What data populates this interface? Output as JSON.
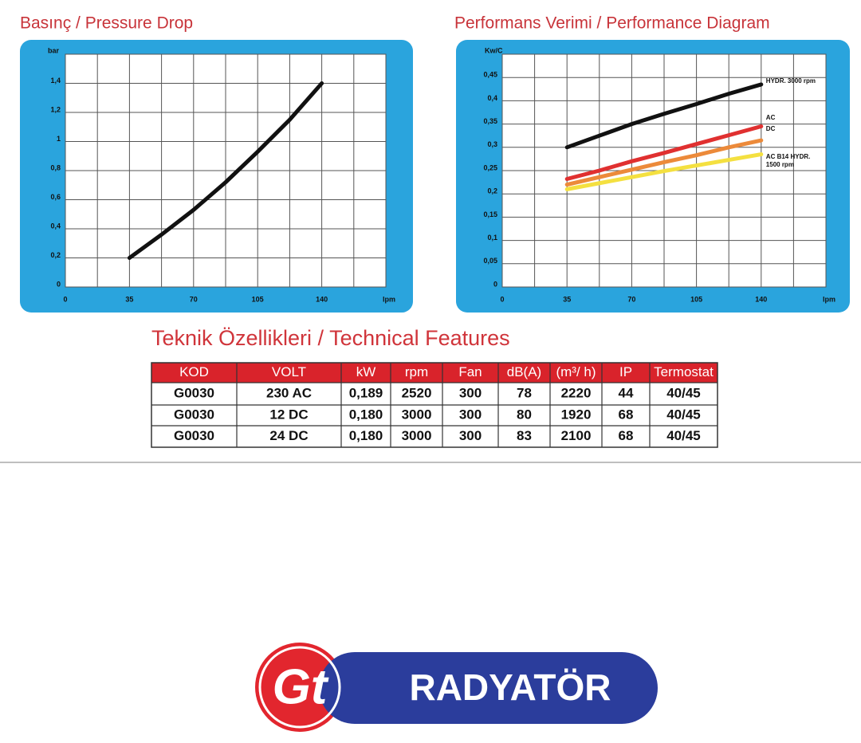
{
  "chart_data": [
    {
      "type": "line",
      "title": "Basınç / Pressure Drop",
      "y_label": "bar",
      "x_label": "lpm",
      "x": [
        35,
        52.5,
        70,
        87.5,
        105,
        122.5,
        140
      ],
      "values": [
        0.2,
        0.36,
        0.53,
        0.72,
        0.93,
        1.15,
        1.4
      ],
      "color": "#111111",
      "xlim": [
        0,
        175
      ],
      "ylim": [
        0,
        1.6
      ],
      "xticks": [
        0,
        35,
        70,
        105,
        140
      ],
      "x_minor_ticks": [
        17.5,
        52.5,
        87.5,
        122.5,
        157.5
      ],
      "yticks": [
        0,
        {
          "value": 0.2,
          "label": "0,2"
        },
        {
          "value": 0.4,
          "label": "0,4"
        },
        {
          "value": 0.6,
          "label": "0,6"
        },
        {
          "value": 0.8,
          "label": "0,8"
        },
        1,
        {
          "value": 1.2,
          "label": "1,2"
        },
        {
          "value": 1.4,
          "label": "1,4"
        }
      ],
      "grid": true
    },
    {
      "type": "line",
      "title": "Performans Verimi / Performance Diagram",
      "y_label": "Kw/C",
      "x_label": "lpm",
      "x": [
        35,
        52.5,
        70,
        87.5,
        105,
        122.5,
        140
      ],
      "series": [
        {
          "name": "HYDR. 3000 rpm",
          "color": "#111111",
          "values": [
            0.3,
            0.325,
            0.35,
            0.372,
            0.393,
            0.415,
            0.435
          ]
        },
        {
          "name": "AC",
          "color": "#e03030",
          "values": [
            0.232,
            0.25,
            0.27,
            0.288,
            0.307,
            0.326,
            0.345
          ]
        },
        {
          "name": "DC",
          "color": "#ec8a3a",
          "values": [
            0.22,
            0.236,
            0.252,
            0.268,
            0.283,
            0.3,
            0.315
          ]
        },
        {
          "name": "AC B14 HYDR. 1500 rpm",
          "color": "#f4e040",
          "values": [
            0.21,
            0.223,
            0.236,
            0.249,
            0.261,
            0.273,
            0.285
          ]
        }
      ],
      "xlim": [
        0,
        175
      ],
      "ylim": [
        0,
        0.5
      ],
      "xticks": [
        0,
        35,
        70,
        105,
        140
      ],
      "x_minor_ticks": [
        17.5,
        52.5,
        87.5,
        122.5,
        157.5
      ],
      "yticks": [
        0,
        {
          "value": 0.05,
          "label": "0,05"
        },
        {
          "value": 0.1,
          "label": "0,1"
        },
        {
          "value": 0.15,
          "label": "0,15"
        },
        {
          "value": 0.2,
          "label": "0,2"
        },
        {
          "value": 0.25,
          "label": "0,25"
        },
        {
          "value": 0.3,
          "label": "0,3"
        },
        {
          "value": 0.35,
          "label": "0,35"
        },
        {
          "value": 0.4,
          "label": "0,4"
        },
        {
          "value": 0.45,
          "label": "0,45"
        }
      ],
      "grid": true
    }
  ],
  "table": {
    "title": "Teknik Özellikleri / Technical Features",
    "header": [
      "KOD",
      "VOLT",
      "kW",
      "rpm",
      "Fan",
      "dB(A)",
      "(m³/ h)",
      "IP",
      "Termostat"
    ],
    "rows": [
      [
        "G0030",
        "230 AC",
        "0,189",
        "2520",
        "300",
        "78",
        "2220",
        "44",
        "40/45"
      ],
      [
        "G0030",
        "12 DC",
        "0,180",
        "3000",
        "300",
        "80",
        "1920",
        "68",
        "40/45"
      ],
      [
        "G0030",
        "24 DC",
        "0,180",
        "3000",
        "300",
        "83",
        "2100",
        "68",
        "40/45"
      ]
    ]
  },
  "logo": {
    "mark": "Gt",
    "text": "RADYATÖR"
  }
}
